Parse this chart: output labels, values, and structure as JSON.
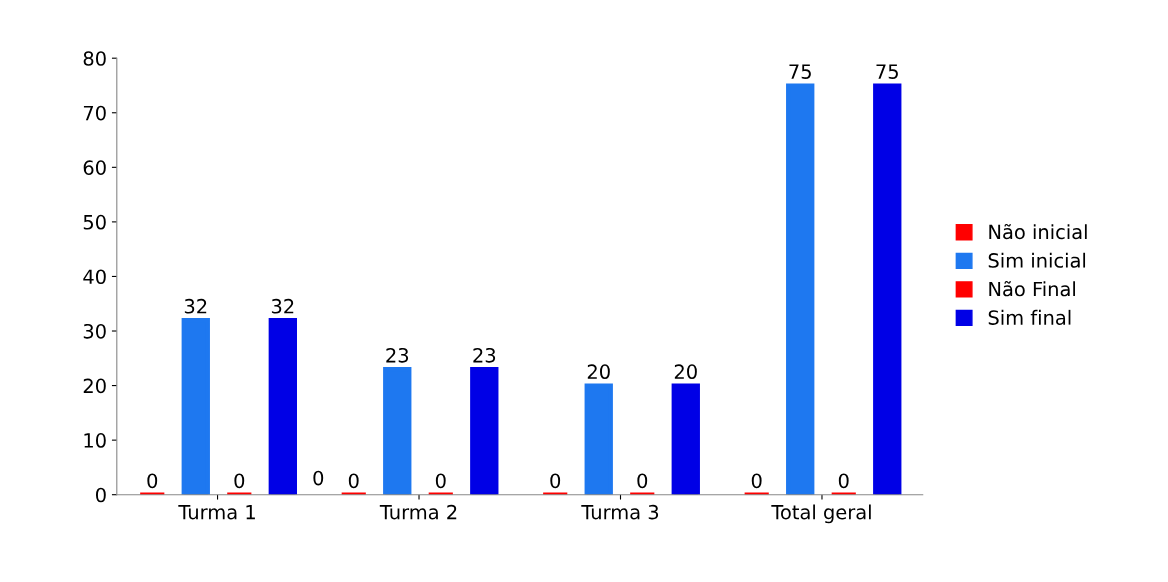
{
  "chart_data": {
    "type": "bar",
    "categories": [
      "Turma 1",
      "Turma 2",
      "Turma 3",
      "Total geral"
    ],
    "series": [
      {
        "name": "Não inicial",
        "color": "#ff0000",
        "values": [
          0,
          0,
          0,
          0
        ]
      },
      {
        "name": "Sim inicial",
        "color": "#1e78f0",
        "values": [
          32,
          23,
          20,
          75
        ]
      },
      {
        "name": "Não Final",
        "color": "#ff0000",
        "values": [
          0,
          0,
          0,
          0
        ]
      },
      {
        "name": "Sim final",
        "color": "#0000e6",
        "values": [
          32,
          23,
          20,
          75
        ]
      }
    ],
    "ylim": [
      0,
      80
    ],
    "yticks": [
      0,
      10,
      20,
      30,
      40,
      50,
      60,
      70,
      80
    ],
    "data_labels": true,
    "legend": "right",
    "grid": false,
    "annotations": [
      "0"
    ]
  }
}
